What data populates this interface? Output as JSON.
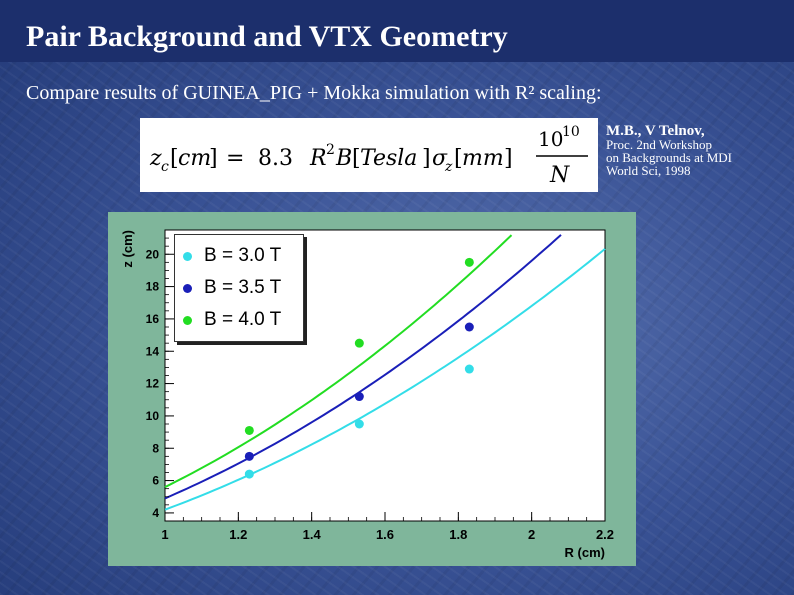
{
  "slide": {
    "title": "Pair Background and VTX Geometry",
    "subtitle": "Compare results of GUINEA_PIG + Mokka simulation with R² scaling:"
  },
  "reference": {
    "author": "M.B., V Telnov,",
    "line1": "Proc. 2nd Workshop",
    "line2": "on Backgrounds at MDI",
    "line3": "World Sci, 1998"
  },
  "formula": {
    "lhs": "z_c[cm] = 8.3 R^2 B[Tesla] σ_z[mm] 10^10 / N"
  },
  "chart_data": {
    "type": "scatter",
    "xlabel": "R (cm)",
    "ylabel": "z (cm)",
    "xlim": [
      1,
      2.2
    ],
    "ylim": [
      3.5,
      21.5
    ],
    "xticks": [
      1,
      1.2,
      1.4,
      1.6,
      1.8,
      2,
      2.2
    ],
    "xtick_labels": [
      "1",
      "1.2",
      "1.4",
      "1.6",
      "1.8",
      "2",
      "2.2"
    ],
    "yticks": [
      4,
      6,
      8,
      10,
      12,
      14,
      16,
      18,
      20
    ],
    "ytick_labels": [
      "4",
      "6",
      "8",
      "10",
      "12",
      "14",
      "16",
      "18",
      "20"
    ],
    "grid": false,
    "legend_position": "top-left",
    "series": [
      {
        "name": "B = 3.0 T",
        "color": "#33dde8",
        "points": [
          [
            1.23,
            6.4
          ],
          [
            1.53,
            9.5
          ],
          [
            1.83,
            12.9
          ]
        ],
        "fit_coefficient": 4.2
      },
      {
        "name": "B = 3.5 T",
        "color": "#1a1fb8",
        "points": [
          [
            1.23,
            7.5
          ],
          [
            1.53,
            11.2
          ],
          [
            1.83,
            15.5
          ]
        ],
        "fit_coefficient": 4.9
      },
      {
        "name": "B = 4.0 T",
        "color": "#22dd22",
        "points": [
          [
            1.23,
            9.1
          ],
          [
            1.53,
            14.5
          ],
          [
            1.83,
            19.5
          ]
        ],
        "fit_coefficient": 5.6
      }
    ]
  }
}
